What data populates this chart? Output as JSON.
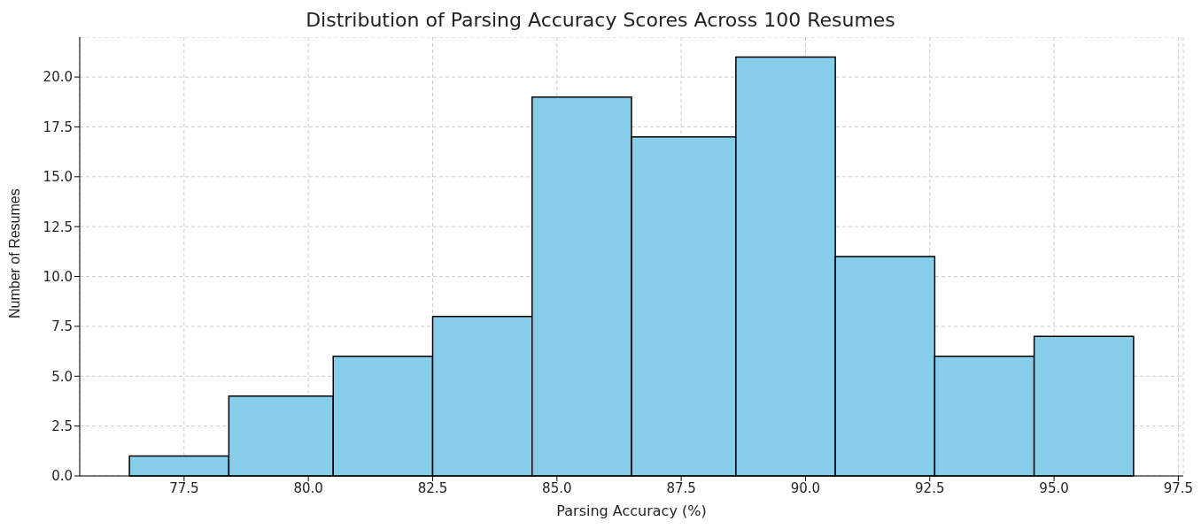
{
  "chart_data": {
    "type": "histogram",
    "title": "Distribution of Parsing Accuracy Scores Across 100 Resumes",
    "xlabel": "Parsing Accuracy (%)",
    "ylabel": "Number of Resumes",
    "bins": [
      76.4,
      78.4,
      80.5,
      82.5,
      84.5,
      86.5,
      88.6,
      90.6,
      92.6,
      94.6,
      96.6
    ],
    "values": [
      1,
      4,
      6,
      8,
      19,
      17,
      21,
      11,
      6,
      7
    ],
    "color": "#87ceeb",
    "xlim": [
      75.4,
      97.6
    ],
    "xticks": [
      77.5,
      {
        "value": 80,
        "label": "80.0"
      },
      82.5,
      {
        "value": 85,
        "label": "85.0"
      },
      87.5,
      {
        "value": 90,
        "label": "90.0"
      },
      92.5,
      {
        "value": 95,
        "label": "95.0"
      },
      97.5
    ],
    "ylim": [
      0,
      22
    ],
    "yticks": [
      {
        "value": 0,
        "label": "0.0"
      },
      2.5,
      {
        "value": 5,
        "label": "5.0"
      },
      7.5,
      {
        "value": 10,
        "label": "10.0"
      },
      12.5,
      {
        "value": 15,
        "label": "15.0"
      },
      17.5,
      {
        "value": 20,
        "label": "20.0"
      }
    ],
    "grid": true
  }
}
